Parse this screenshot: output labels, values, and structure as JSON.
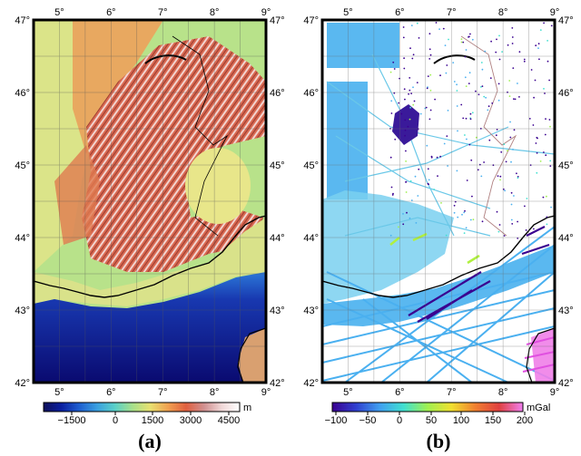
{
  "panels": [
    {
      "caption": "(a)",
      "lon_ticks": [
        "5°",
        "6°",
        "7°",
        "8°",
        "9°"
      ],
      "lat_ticks": [
        "42°",
        "43°",
        "44°",
        "45°",
        "46°",
        "47°"
      ],
      "colorbar": {
        "unit": "m",
        "tick_labels": [
          "−1500",
          "0",
          "1500",
          "3000",
          "4500"
        ],
        "colors": [
          "#10105a",
          "#0a1fa0",
          "#1e5fd0",
          "#3aa0e0",
          "#5ad0c8",
          "#a8e08a",
          "#e8e070",
          "#f0a050",
          "#e06040",
          "#d09090",
          "#f0d8d8",
          "#ffffff"
        ]
      }
    },
    {
      "caption": "(b)",
      "lon_ticks": [
        "5°",
        "6°",
        "7°",
        "8°",
        "9°"
      ],
      "lat_ticks": [
        "42°",
        "43°",
        "44°",
        "45°",
        "46°",
        "47°"
      ],
      "colorbar": {
        "unit": "mGal",
        "tick_labels": [
          "−100",
          "−50",
          "0",
          "50",
          "100",
          "150",
          "200"
        ],
        "colors": [
          "#3a0090",
          "#3040d0",
          "#40a0f0",
          "#40e0d0",
          "#a0f050",
          "#f0e030",
          "#f08030",
          "#e04040",
          "#f080f0"
        ]
      }
    }
  ],
  "map_extent": {
    "lon": [
      4.5,
      9
    ],
    "lat": [
      42,
      47
    ]
  },
  "colors": {
    "topo_low": "#1028a0",
    "topo_mid": "#a8e08a",
    "topo_high": "#d05040",
    "gravity_point": "#4ab0f0",
    "gravity_negative": "#3a0090",
    "coastline": "#000000",
    "border": "#b08080"
  }
}
